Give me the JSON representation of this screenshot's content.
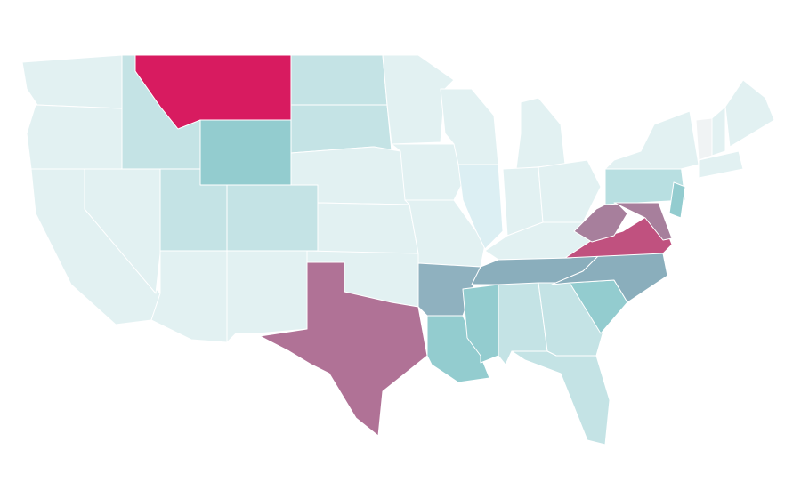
{
  "map": {
    "region_fills": [
      "#e2f1f2",
      "#c4e3e5",
      "#d81b60",
      "#93cccf",
      "#8fb1bf",
      "#8aaebc",
      "#b07296",
      "#a77f9c",
      "#c0517f",
      "#b8dfe1",
      "#dceff3",
      "#f0f3f4"
    ]
  }
}
